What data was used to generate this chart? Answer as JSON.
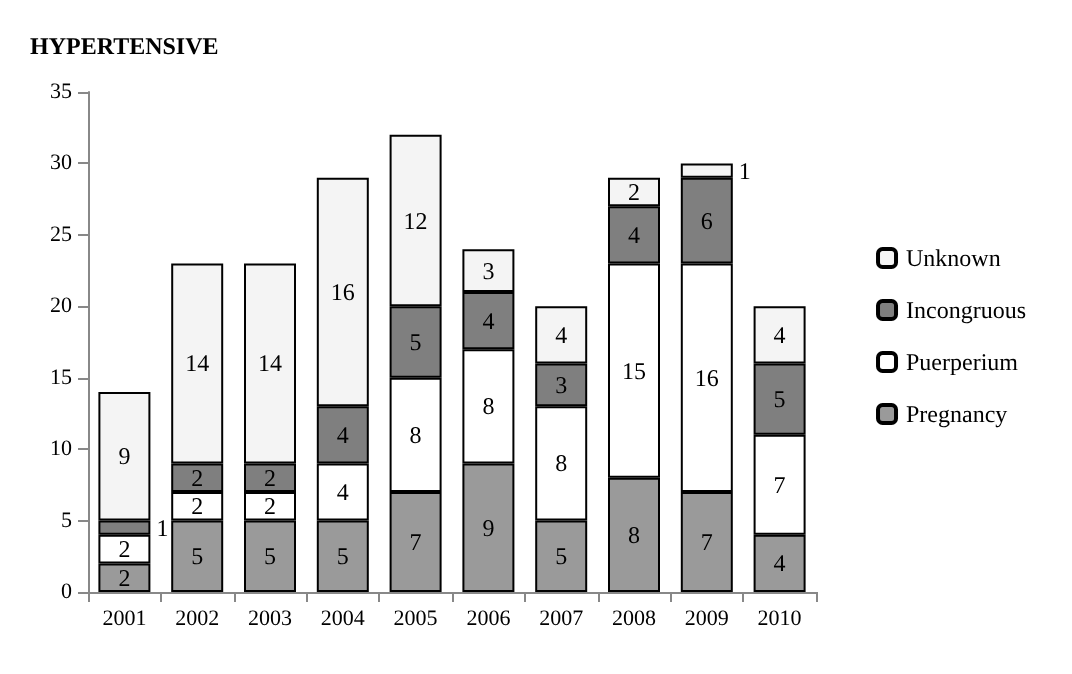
{
  "chart_data": {
    "type": "bar",
    "title": "HYPERTENSIVE",
    "categories": [
      "2001",
      "2002",
      "2003",
      "2004",
      "2005",
      "2006",
      "2007",
      "2008",
      "2009",
      "2010"
    ],
    "stacked": true,
    "data_labels": true,
    "legend": "right",
    "grid": false,
    "ylim": [
      0,
      35
    ],
    "yticks": [
      0,
      5,
      10,
      15,
      20,
      25,
      30,
      35
    ],
    "series": [
      {
        "name": "Pregnancy",
        "color": "#9a9a9a",
        "values": [
          2,
          5,
          5,
          5,
          7,
          9,
          5,
          8,
          7,
          4
        ]
      },
      {
        "name": "Puerperium",
        "color": "#ffffff",
        "values": [
          2,
          2,
          2,
          4,
          8,
          8,
          8,
          15,
          16,
          7
        ]
      },
      {
        "name": "Incongruous",
        "color": "#7f7f7f",
        "values": [
          1,
          2,
          2,
          4,
          5,
          4,
          3,
          4,
          6,
          5
        ]
      },
      {
        "name": "Unknown",
        "color": "#f4f4f4",
        "values": [
          9,
          14,
          14,
          16,
          12,
          3,
          4,
          2,
          1,
          4
        ]
      }
    ]
  }
}
